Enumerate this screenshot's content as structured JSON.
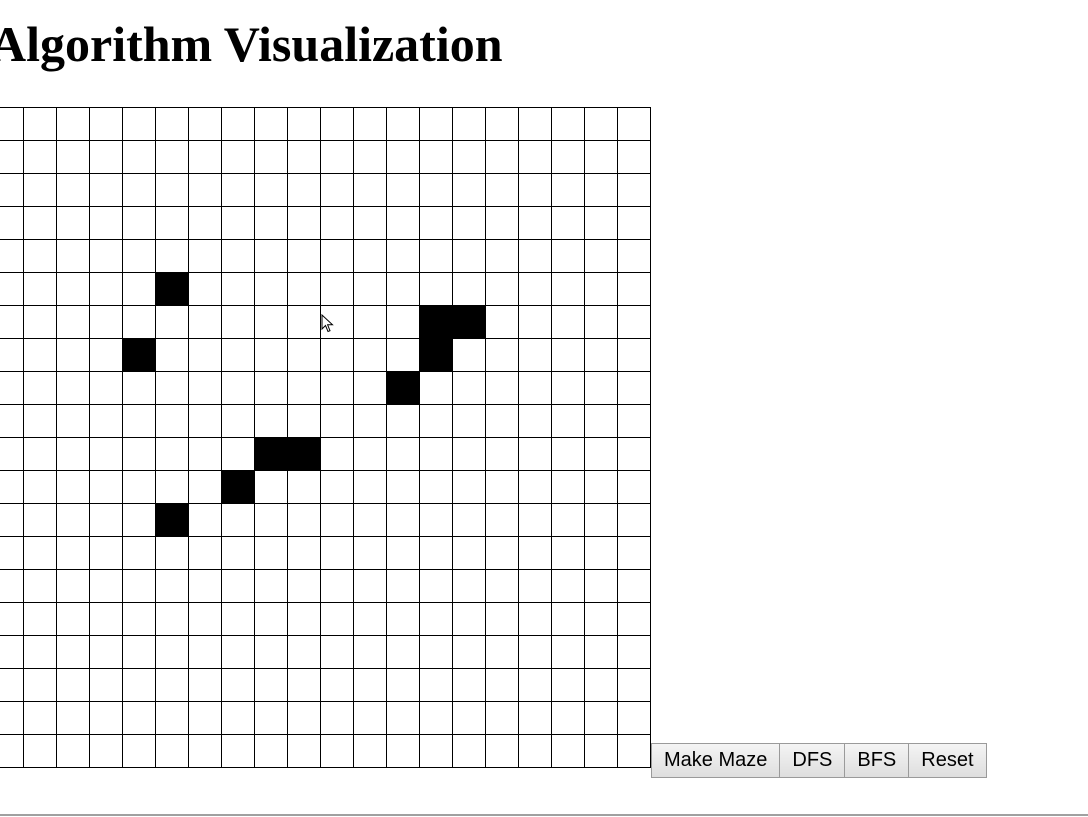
{
  "page": {
    "title": "Algorithm Visualization"
  },
  "grid": {
    "rows": 20,
    "cols": 20,
    "walls": [
      [
        5,
        5
      ],
      [
        6,
        13
      ],
      [
        6,
        14
      ],
      [
        7,
        4
      ],
      [
        7,
        13
      ],
      [
        8,
        12
      ],
      [
        10,
        8
      ],
      [
        10,
        9
      ],
      [
        11,
        7
      ],
      [
        12,
        5
      ]
    ]
  },
  "controls": {
    "make_maze_label": "Make Maze",
    "dfs_label": "DFS",
    "bfs_label": "BFS",
    "reset_label": "Reset"
  },
  "colors": {
    "wall": "#000000",
    "empty": "#ffffff",
    "grid_line": "#000000"
  }
}
